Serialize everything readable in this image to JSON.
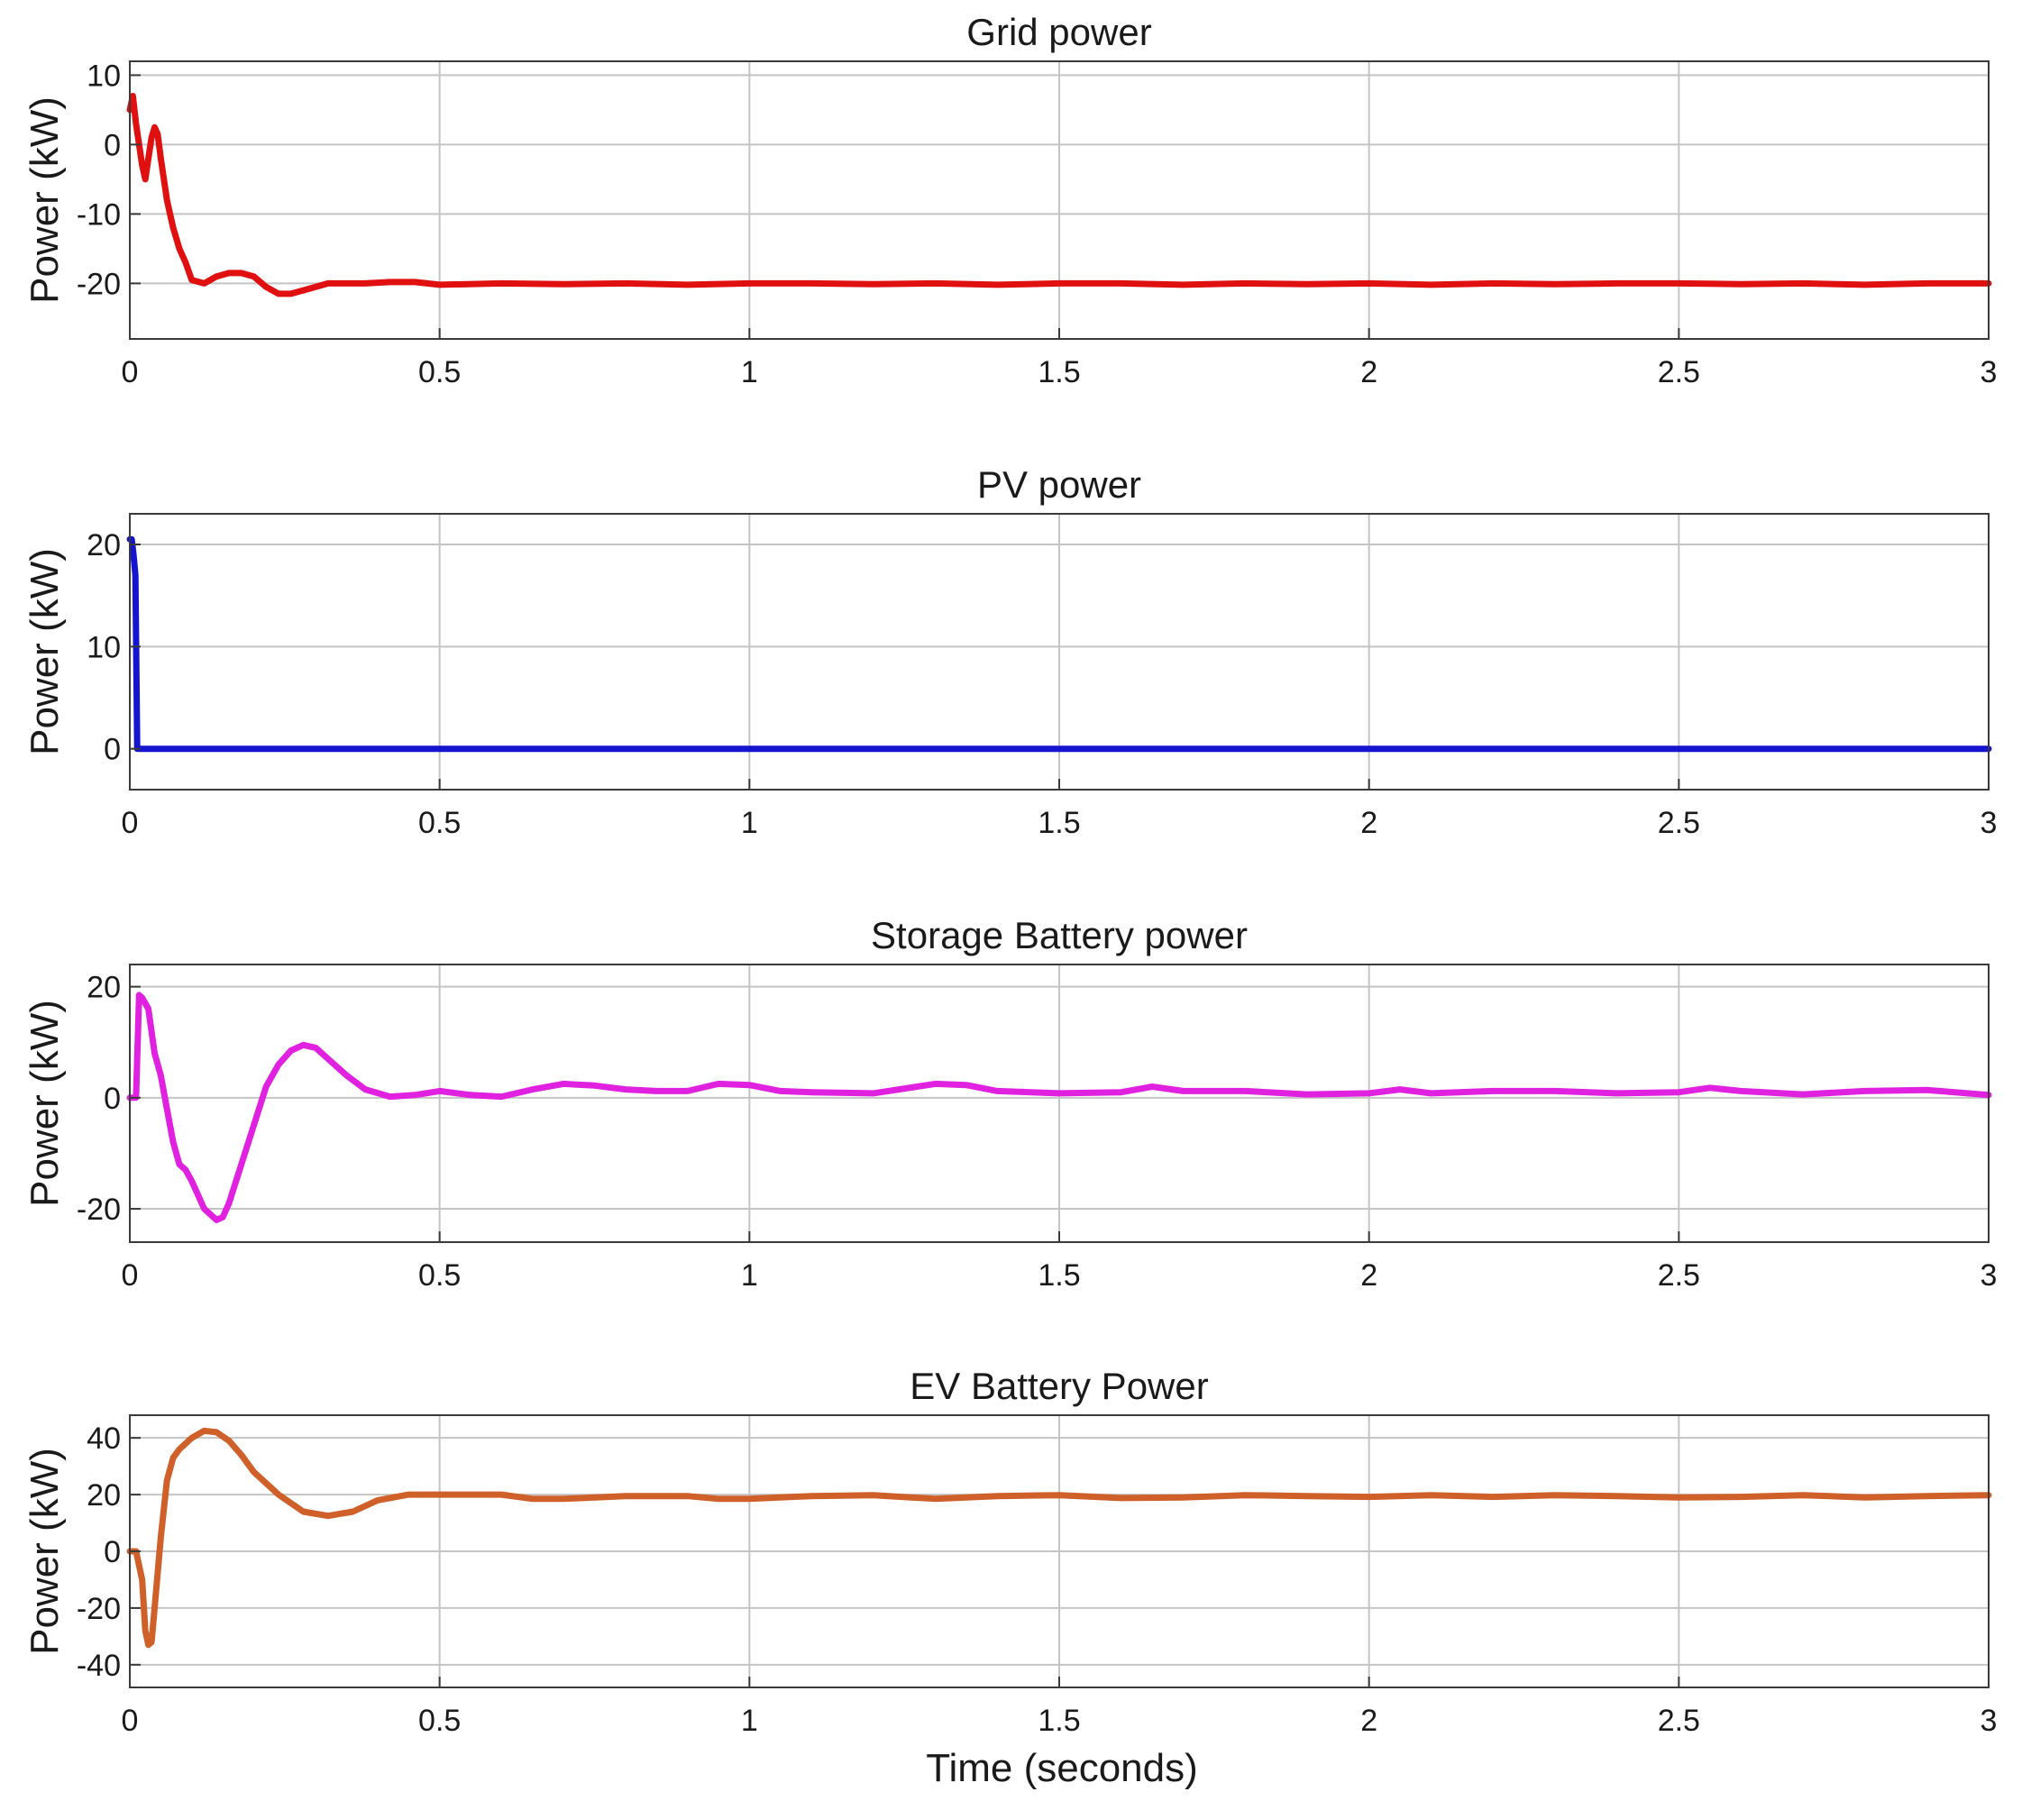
{
  "chart_data": [
    {
      "type": "line",
      "title": "Grid power",
      "ylabel": "Power (kW)",
      "xlabel": "",
      "xlim": [
        0,
        3
      ],
      "ylim": [
        -28,
        12
      ],
      "xticks": [
        0,
        0.5,
        1,
        1.5,
        2,
        2.5,
        3
      ],
      "xtick_labels": [
        "0",
        "0.5",
        "1",
        "1.5",
        "2",
        "2.5",
        "3"
      ],
      "yticks": [
        10,
        0,
        -10,
        -20
      ],
      "ytick_labels": [
        "10",
        "0",
        "-10",
        "-20"
      ],
      "grid": true,
      "color": "#e01010",
      "series": [
        {
          "x": [
            0,
            0.005,
            0.01,
            0.015,
            0.02,
            0.025,
            0.03,
            0.035,
            0.04,
            0.045,
            0.05,
            0.06,
            0.07,
            0.08,
            0.09,
            0.1,
            0.12,
            0.14,
            0.16,
            0.18,
            0.2,
            0.22,
            0.24,
            0.26,
            0.28,
            0.3,
            0.32,
            0.35,
            0.38,
            0.42,
            0.46,
            0.5,
            0.6,
            0.7,
            0.8,
            0.9,
            1.0,
            1.1,
            1.2,
            1.3,
            1.4,
            1.5,
            1.6,
            1.7,
            1.8,
            1.9,
            2.0,
            2.1,
            2.2,
            2.3,
            2.4,
            2.5,
            2.6,
            2.7,
            2.8,
            2.9,
            3.0
          ],
          "y": [
            5,
            7,
            3,
            0,
            -3,
            -5,
            -2,
            1,
            2.5,
            1.5,
            -2,
            -8,
            -12,
            -15,
            -17,
            -19.5,
            -20,
            -19,
            -18.5,
            -18.5,
            -19,
            -20.5,
            -21.5,
            -21.5,
            -21,
            -20.5,
            -20,
            -20,
            -20,
            -19.8,
            -19.8,
            -20.2,
            -20,
            -20.1,
            -20,
            -20.2,
            -20,
            -20,
            -20.1,
            -20,
            -20.2,
            -20,
            -20,
            -20.2,
            -20,
            -20.1,
            -20,
            -20.2,
            -20,
            -20.1,
            -20,
            -20,
            -20.1,
            -20,
            -20.2,
            -20,
            -20
          ]
        }
      ]
    },
    {
      "type": "line",
      "title": "PV power",
      "ylabel": "Power (kW)",
      "xlabel": "",
      "xlim": [
        0,
        3
      ],
      "ylim": [
        -4,
        23
      ],
      "xticks": [
        0,
        0.5,
        1,
        1.5,
        2,
        2.5,
        3
      ],
      "xtick_labels": [
        "0",
        "0.5",
        "1",
        "1.5",
        "2",
        "2.5",
        "3"
      ],
      "yticks": [
        20,
        10,
        0
      ],
      "ytick_labels": [
        "20",
        "10",
        "0"
      ],
      "grid": true,
      "color": "#1515d0",
      "series": [
        {
          "x": [
            0,
            0.003,
            0.006,
            0.009,
            0.012,
            0.015,
            0.5,
            1.0,
            1.5,
            2.0,
            2.5,
            3.0
          ],
          "y": [
            20.5,
            20.5,
            19,
            17,
            0,
            0,
            0,
            0,
            0,
            0,
            0,
            0
          ]
        }
      ]
    },
    {
      "type": "line",
      "title": "Storage Battery power",
      "ylabel": "Power (kW)",
      "xlabel": "",
      "xlim": [
        0,
        3
      ],
      "ylim": [
        -26,
        24
      ],
      "xticks": [
        0,
        0.5,
        1,
        1.5,
        2,
        2.5,
        3
      ],
      "xtick_labels": [
        "0",
        "0.5",
        "1",
        "1.5",
        "2",
        "2.5",
        "3"
      ],
      "yticks": [
        20,
        0,
        -20
      ],
      "ytick_labels": [
        "20",
        "0",
        "-20"
      ],
      "grid": true,
      "color": "#e022e0",
      "series": [
        {
          "x": [
            0,
            0.01,
            0.015,
            0.02,
            0.025,
            0.03,
            0.04,
            0.05,
            0.06,
            0.07,
            0.08,
            0.09,
            0.1,
            0.12,
            0.14,
            0.15,
            0.16,
            0.18,
            0.2,
            0.22,
            0.24,
            0.26,
            0.28,
            0.3,
            0.32,
            0.35,
            0.38,
            0.42,
            0.46,
            0.5,
            0.55,
            0.6,
            0.65,
            0.7,
            0.75,
            0.8,
            0.85,
            0.9,
            0.95,
            1.0,
            1.05,
            1.1,
            1.2,
            1.3,
            1.35,
            1.4,
            1.5,
            1.6,
            1.65,
            1.7,
            1.8,
            1.9,
            2.0,
            2.05,
            2.1,
            2.2,
            2.3,
            2.4,
            2.5,
            2.55,
            2.6,
            2.7,
            2.8,
            2.9,
            3.0
          ],
          "y": [
            0,
            0,
            18.5,
            18,
            17,
            16,
            8,
            4,
            -2,
            -8,
            -12,
            -13,
            -15,
            -20,
            -22,
            -21.5,
            -19,
            -12,
            -5,
            2,
            6,
            8.5,
            9.5,
            9,
            7,
            4,
            1.5,
            0.2,
            0.5,
            1.2,
            0.5,
            0.2,
            1.5,
            2.5,
            2.2,
            1.5,
            1.2,
            1.2,
            2.5,
            2.3,
            1.2,
            1,
            0.8,
            2.5,
            2.3,
            1.2,
            0.8,
            1,
            2,
            1.2,
            1.2,
            0.6,
            0.8,
            1.5,
            0.8,
            1.2,
            1.2,
            0.8,
            1,
            1.8,
            1.2,
            0.6,
            1.2,
            1.4,
            0.5
          ]
        }
      ]
    },
    {
      "type": "line",
      "title": "EV Battery Power",
      "ylabel": "Power (kW)",
      "xlabel": "Time (seconds)",
      "xlim": [
        0,
        3
      ],
      "ylim": [
        -48,
        48
      ],
      "xticks": [
        0,
        0.5,
        1,
        1.5,
        2,
        2.5,
        3
      ],
      "xtick_labels": [
        "0",
        "0.5",
        "1",
        "1.5",
        "2",
        "2.5",
        "3"
      ],
      "yticks": [
        40,
        20,
        0,
        -20,
        -40
      ],
      "ytick_labels": [
        "40",
        "20",
        "0",
        "-20",
        "-40"
      ],
      "grid": true,
      "color": "#d0602a",
      "series": [
        {
          "x": [
            0,
            0.01,
            0.02,
            0.025,
            0.03,
            0.035,
            0.04,
            0.05,
            0.06,
            0.07,
            0.08,
            0.1,
            0.12,
            0.14,
            0.16,
            0.18,
            0.2,
            0.24,
            0.28,
            0.32,
            0.36,
            0.4,
            0.45,
            0.5,
            0.6,
            0.65,
            0.7,
            0.8,
            0.9,
            0.95,
            1.0,
            1.1,
            1.2,
            1.3,
            1.4,
            1.5,
            1.6,
            1.7,
            1.8,
            1.9,
            2.0,
            2.1,
            2.2,
            2.3,
            2.4,
            2.5,
            2.6,
            2.7,
            2.8,
            2.9,
            3.0
          ],
          "y": [
            0,
            0,
            -10,
            -28,
            -33,
            -32,
            -20,
            5,
            25,
            33,
            36,
            40,
            42.5,
            42,
            39,
            34,
            28,
            20,
            14,
            12.5,
            14,
            18,
            20,
            20,
            20,
            18.5,
            18.5,
            19.5,
            19.5,
            18.5,
            18.5,
            19.5,
            19.8,
            18.5,
            19.5,
            19.8,
            18.8,
            19,
            19.8,
            19.5,
            19.2,
            19.8,
            19.2,
            19.8,
            19.5,
            19,
            19.2,
            19.8,
            19,
            19.5,
            19.8
          ]
        }
      ]
    }
  ]
}
